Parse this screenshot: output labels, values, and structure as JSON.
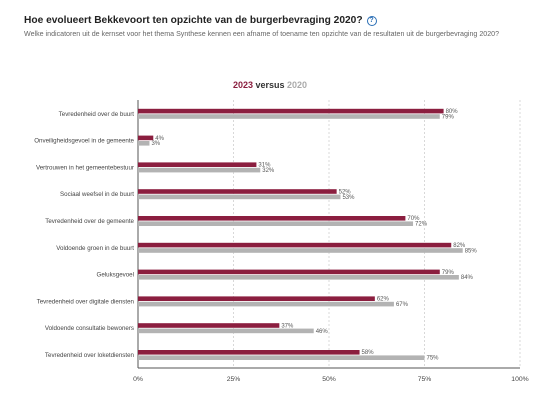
{
  "header": {
    "title": "Hoe evolueert Bekkevoort ten opzichte van de burgerbevraging 2020?",
    "help_icon": "question-circle-icon",
    "subtitle": "Welke indicatoren uit de kernset voor het thema Synthese kennen een afname of toename ten opzichte van de resultaten uit de burgerbevraging 2020?"
  },
  "legend": {
    "current": "2023",
    "connector": "versus",
    "previous": "2020"
  },
  "colors": {
    "current": "#8b1e3f",
    "previous": "#b3b3b3",
    "grid": "#cfcfcf"
  },
  "chart_data": {
    "type": "bar",
    "orientation": "horizontal",
    "categories": [
      "Tevredenheid over de buurt",
      "Onveiligheidsgevoel in de gemeente",
      "Vertrouwen in het gemeentebestuur",
      "Sociaal weefsel in de buurt",
      "Tevredenheid over de gemeente",
      "Voldoende groen in de buurt",
      "Geluksgevoel",
      "Tevredenheid over digitale diensten",
      "Voldoende consultatie bewoners",
      "Tevredenheid over loketdiensten"
    ],
    "series": [
      {
        "name": "2023",
        "values": [
          80,
          4,
          31,
          52,
          70,
          82,
          79,
          62,
          37,
          58
        ],
        "labels": [
          "80%",
          "4%",
          "31%",
          "52%",
          "70%",
          "82%",
          "79%",
          "62%",
          "37%",
          "58%"
        ]
      },
      {
        "name": "2020",
        "values": [
          79,
          3,
          32,
          53,
          72,
          85,
          84,
          67,
          46,
          75
        ],
        "labels": [
          "79%",
          "3%",
          "32%",
          "53%",
          "72%",
          "85%",
          "84%",
          "67%",
          "46%",
          "75%"
        ]
      }
    ],
    "xlim": [
      0,
      100
    ],
    "xticks": [
      0,
      25,
      50,
      75,
      100
    ],
    "xtick_labels": [
      "0%",
      "25%",
      "50%",
      "75%",
      "100%"
    ],
    "grid": true
  }
}
